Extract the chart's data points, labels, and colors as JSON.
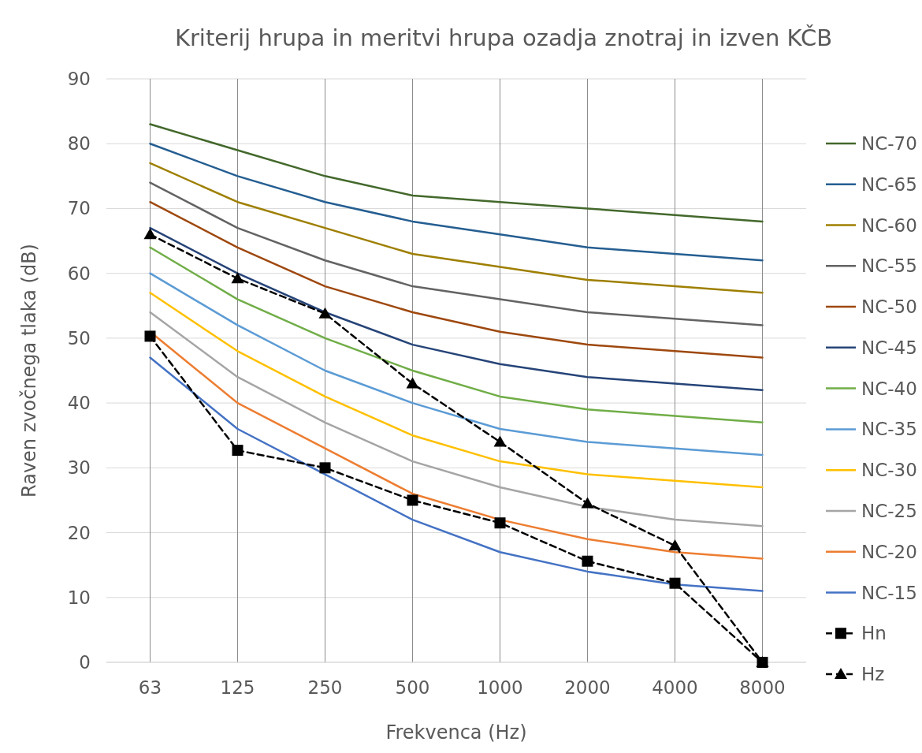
{
  "chart_data": {
    "type": "line",
    "title": "Kriterij hrupa in meritvi hrupa ozadja znotraj in izven KČB",
    "xlabel": "Frekvenca (Hz)",
    "ylabel": "Raven zvočnega tlaka (dB)",
    "categories": [
      "63",
      "125",
      "250",
      "500",
      "1000",
      "2000",
      "4000",
      "8000"
    ],
    "ylim": [
      0,
      90
    ],
    "yticks": [
      0,
      10,
      20,
      30,
      40,
      50,
      60,
      70,
      80,
      90
    ],
    "grid": true,
    "legend": "right",
    "marker": "none",
    "line_style": "solid",
    "series": [
      {
        "name": "NC-70",
        "color": "#43682b",
        "values": [
          83,
          79,
          75,
          72,
          71,
          70,
          69,
          68
        ]
      },
      {
        "name": "NC-65",
        "color": "#255e91",
        "values": [
          80,
          75,
          71,
          68,
          66,
          64,
          63,
          62
        ]
      },
      {
        "name": "NC-60",
        "color": "#9e7f00",
        "values": [
          77,
          71,
          67,
          63,
          61,
          59,
          58,
          57
        ]
      },
      {
        "name": "NC-55",
        "color": "#636363",
        "values": [
          74,
          67,
          62,
          58,
          56,
          54,
          53,
          52
        ]
      },
      {
        "name": "NC-50",
        "color": "#9e480e",
        "values": [
          71,
          64,
          58,
          54,
          51,
          49,
          48,
          47
        ]
      },
      {
        "name": "NC-45",
        "color": "#264478",
        "values": [
          67,
          60,
          54,
          49,
          46,
          44,
          43,
          42
        ]
      },
      {
        "name": "NC-40",
        "color": "#70ad47",
        "values": [
          64,
          56,
          50,
          45,
          41,
          39,
          38,
          37
        ]
      },
      {
        "name": "NC-35",
        "color": "#5b9bd5",
        "values": [
          60,
          52,
          45,
          40,
          36,
          34,
          33,
          32
        ]
      },
      {
        "name": "NC-30",
        "color": "#ffc000",
        "values": [
          57,
          48,
          41,
          35,
          31,
          29,
          28,
          27
        ]
      },
      {
        "name": "NC-25",
        "color": "#a5a5a5",
        "values": [
          54,
          44,
          37,
          31,
          27,
          24,
          22,
          21
        ]
      },
      {
        "name": "NC-20",
        "color": "#ed7d31",
        "values": [
          51,
          40,
          33,
          26,
          22,
          19,
          17,
          16
        ]
      },
      {
        "name": "NC-15",
        "color": "#4472c4",
        "values": [
          47,
          36,
          29,
          22,
          17,
          14,
          12,
          11
        ]
      },
      {
        "name": "Hn",
        "color": "#000000",
        "marker": "square",
        "line_style": "dashed",
        "values": [
          50.3,
          32.7,
          30,
          25,
          21.5,
          15.6,
          12.2,
          0
        ]
      },
      {
        "name": "Hz",
        "color": "#000000",
        "marker": "triangle",
        "line_style": "dashed",
        "values": [
          66,
          59.2,
          53.8,
          43,
          34,
          24.5,
          18,
          0
        ]
      }
    ]
  }
}
